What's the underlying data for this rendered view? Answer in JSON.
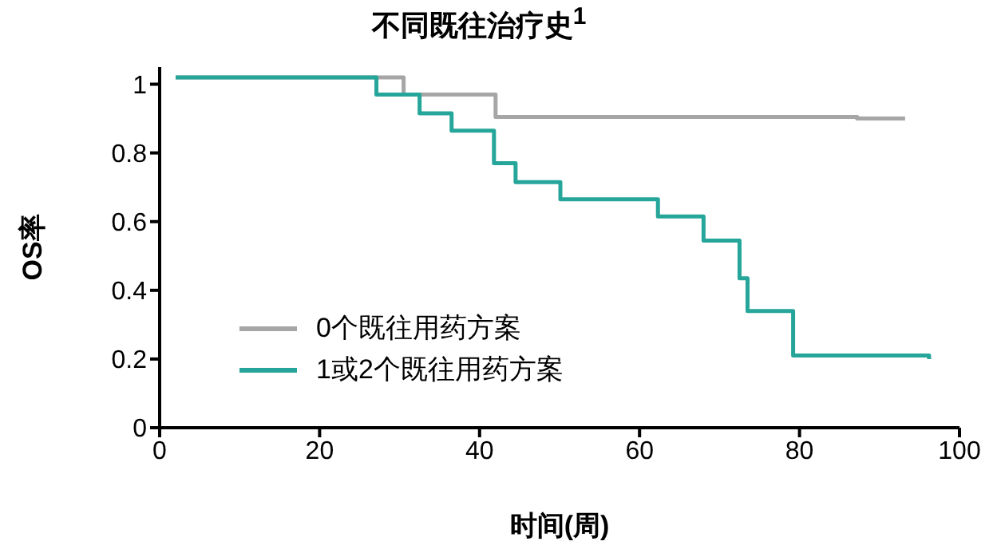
{
  "chart_data": {
    "type": "step",
    "title": "不同既往治疗史$^{1}$",
    "xlabel": "时间(周)",
    "ylabel": "OS率",
    "xlim": [
      0,
      100
    ],
    "xticks": [
      0,
      20,
      40,
      60,
      80,
      100
    ],
    "ylim": [
      0,
      1.05
    ],
    "yticks": [
      0,
      0.2,
      0.4,
      0.6,
      0.8,
      1
    ],
    "grid": false,
    "legend": "bottom left",
    "marker": "none",
    "line_style": "solid",
    "series": [
      {
        "name": "0个既往用药方案",
        "color": "#a6a6a6",
        "x": [
          2,
          30.5,
          42,
          87.2,
          93.2
        ],
        "values": [
          1.02,
          0.97,
          0.905,
          0.9,
          0.9
        ]
      },
      {
        "name": "1或2个既往用药方案",
        "color": "#26a69a",
        "x": [
          2,
          27.1,
          32.5,
          36.5,
          41.8,
          44.5,
          50.1,
          62.3,
          68,
          72.5,
          73.5,
          79.2,
          96.2
        ],
        "values": [
          1.02,
          0.97,
          0.915,
          0.865,
          0.77,
          0.715,
          0.665,
          0.615,
          0.545,
          0.435,
          0.34,
          0.21,
          0.2
        ]
      }
    ]
  }
}
